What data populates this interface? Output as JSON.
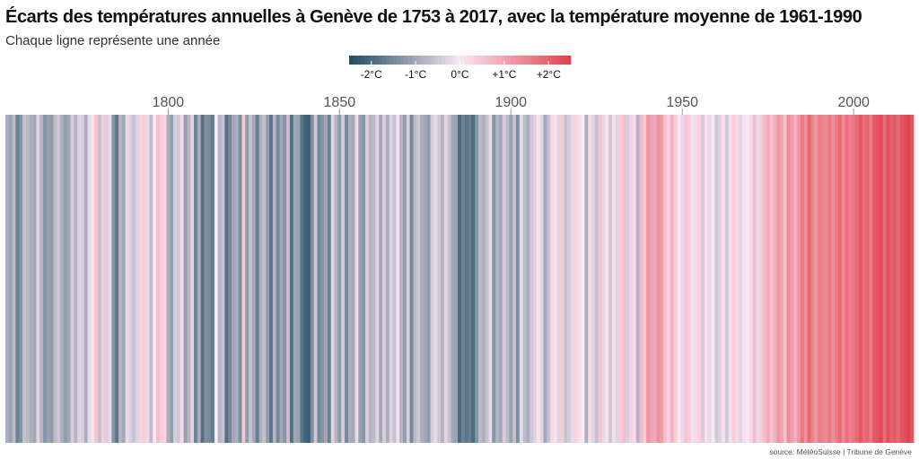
{
  "title": "Écarts des températures annuelles à Genève de 1753 à 2017, avec la température moyenne de 1961-1990",
  "subtitle": "Chaque ligne représente une année",
  "source": "source: MétéoSuisse | Tribune de Genève",
  "colors": {
    "cold": "#1e4b5f",
    "neutral": "#fbe6f4",
    "warm": "#e0414c"
  },
  "chart_data": {
    "type": "heatmap",
    "title": "Écarts des températures annuelles à Genève de 1753 à 2017, avec la température moyenne de 1961-1990",
    "subtitle": "Chaque ligne représente une année",
    "x_start": 1753,
    "x_end": 2017,
    "x_ticks": [
      1800,
      1850,
      1900,
      1950,
      2000
    ],
    "x_tick_labels": [
      "1800",
      "1850",
      "1900",
      "1950",
      "2000"
    ],
    "color_range": [
      -2.5,
      2.5
    ],
    "legend": {
      "placement": "top-center",
      "ticks": [
        -2,
        -1,
        0,
        1,
        2
      ],
      "labels": [
        "-2°C",
        "-1°C",
        "0°C",
        "+1°C",
        "+2°C"
      ]
    },
    "anomalies": [
      -0.9,
      -1.1,
      -0.7,
      -1.6,
      -1.3,
      -0.6,
      -0.7,
      -0.9,
      -1.0,
      -0.3,
      -0.8,
      -1.3,
      -1.1,
      -1.2,
      -0.7,
      -0.5,
      -0.9,
      -1.2,
      -1.0,
      -0.4,
      -0.8,
      -0.3,
      -0.4,
      -0.9,
      -0.2,
      0.1,
      0.5,
      -0.6,
      0.4,
      -0.4,
      -0.2,
      -1.3,
      -1.8,
      -0.8,
      -1.0,
      -0.2,
      -0.4,
      -0.6,
      -0.3,
      0.3,
      0.4,
      -0.2,
      -0.7,
      0.0,
      0.6,
      0.4,
      0.3,
      -0.9,
      -1.2,
      -0.4,
      -0.5,
      0.2,
      -1.1,
      -0.8,
      -0.3,
      -1.6,
      -0.9,
      -1.9,
      -1.4,
      -1.5,
      -1.7,
      0.0,
      -0.8,
      -0.6,
      -1.9,
      -1.5,
      -1.0,
      -0.9,
      -1.4,
      0.5,
      -1.2,
      -0.6,
      -1.0,
      -1.7,
      -0.9,
      -0.6,
      -1.2,
      -1.8,
      -0.8,
      -1.5,
      -1.0,
      -1.3,
      -0.6,
      -1.9,
      -1.0,
      -1.1,
      -1.8,
      -2.1,
      -2.2,
      -1.4,
      -0.5,
      -1.5,
      -1.3,
      -1.0,
      -1.6,
      -0.3,
      -0.8,
      -1.2,
      -0.4,
      -1.5,
      -0.9,
      -1.0,
      -0.2,
      -1.1,
      -1.3,
      -0.4,
      -0.8,
      -0.7,
      -0.3,
      -1.0,
      -0.4,
      -0.9,
      -0.3,
      -0.6,
      -0.1,
      -0.8,
      -1.2,
      -0.4,
      -1.5,
      -0.7,
      -0.5,
      -0.9,
      -1.0,
      -1.2,
      -0.4,
      -0.2,
      -0.5,
      -0.8,
      -0.3,
      -0.6,
      -1.0,
      -1.1,
      -2.0,
      -1.6,
      -1.8,
      -1.7,
      -2.0,
      -1.3,
      -0.7,
      -0.9,
      -0.6,
      -0.2,
      -1.3,
      -0.8,
      -1.0,
      -0.4,
      -0.7,
      -1.1,
      -0.6,
      -1.4,
      -0.2,
      -0.7,
      -0.9,
      -0.5,
      -0.3,
      0.1,
      -0.3,
      -1.0,
      -0.6,
      0.2,
      0.1,
      -0.3,
      0.4,
      -0.6,
      -0.4,
      -0.2,
      0.3,
      -0.1,
      0.0,
      -0.9,
      0.2,
      -0.3,
      -0.6,
      0.5,
      -0.2,
      0.1,
      -0.5,
      -0.1,
      -0.3,
      0.4,
      0.6,
      -0.4,
      0.3,
      0.2,
      -0.8,
      0.7,
      0.4,
      1.2,
      1.0,
      0.9,
      1.3,
      1.1,
      0.6,
      0.3,
      0.8,
      0.4,
      0.0,
      -0.2,
      0.5,
      0.4,
      -0.1,
      0.2,
      0.3,
      -0.4,
      0.1,
      -0.2,
      0.0,
      -0.5,
      -0.3,
      0.1,
      -0.5,
      -0.1,
      0.4,
      0.2,
      -0.3,
      -0.1,
      0.0,
      0.2,
      0.6,
      -0.2,
      0.4,
      0.6,
      0.9,
      0.5,
      0.8,
      1.2,
      1.0,
      0.6,
      1.4,
      1.1,
      0.8,
      1.2,
      1.7,
      1.3,
      1.9,
      1.5,
      1.2,
      1.6,
      1.5,
      1.4,
      1.7,
      1.3,
      1.6,
      1.9,
      1.4,
      1.8,
      1.5,
      1.7,
      1.9,
      2.2,
      1.8,
      2.0,
      1.6,
      2.1,
      2.2,
      2.4,
      1.8,
      2.3,
      2.0,
      2.1,
      1.9,
      2.2,
      2.3,
      2.5,
      2.2
    ]
  }
}
